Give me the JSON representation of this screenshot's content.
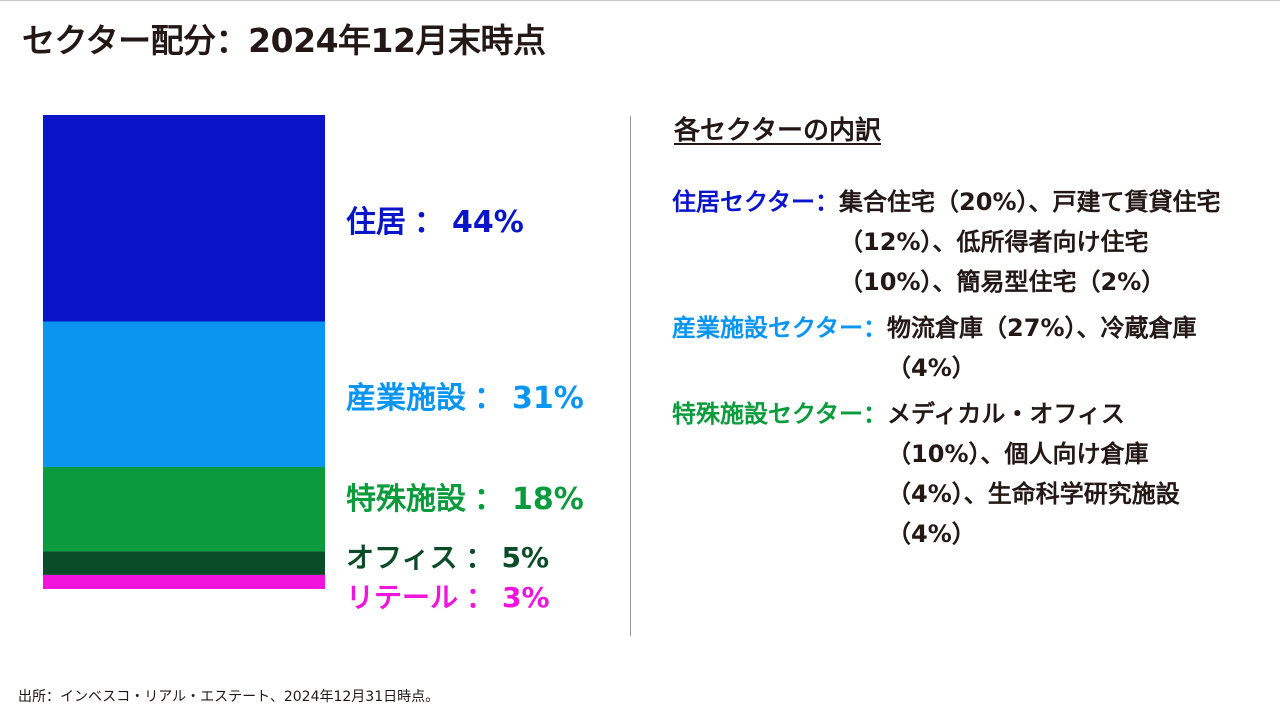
{
  "title": "セクター配分：2024年12月末時点",
  "colon": "：",
  "chart_data": {
    "type": "bar",
    "stacked": true,
    "categories": [
      "住居",
      "産業施設",
      "特殊施設",
      "オフィス",
      "リテール"
    ],
    "values": [
      44,
      31,
      18,
      5,
      3
    ],
    "value_labels": [
      "44%",
      "31%",
      "18%",
      "5%",
      "3%"
    ],
    "colors": [
      "#0a14c8",
      "#0a96f0",
      "#0a9b3c",
      "#0a4b28",
      "#f014dc"
    ]
  },
  "breakdown": {
    "heading": "各セクターの内訳",
    "items": [
      {
        "label": "住居セクター：",
        "color": "#0a14c8",
        "text": "集合住宅（20%）、戸建て賃貸住宅（12%）、低所得者向け住宅（10%）、簡易型住宅（2%）"
      },
      {
        "label": "産業施設セクター：",
        "color": "#0a96f0",
        "text": "物流倉庫（27%）、冷蔵倉庫（4%）"
      },
      {
        "label": "特殊施設セクター：",
        "color": "#0a9b3c",
        "text": "メディカル・オフィス（10%）、個人向け倉庫（4%）、生命科学研究施設（4%）"
      }
    ]
  },
  "source": "出所：インベスコ・リアル・エステート、2024年12月31日時点。"
}
